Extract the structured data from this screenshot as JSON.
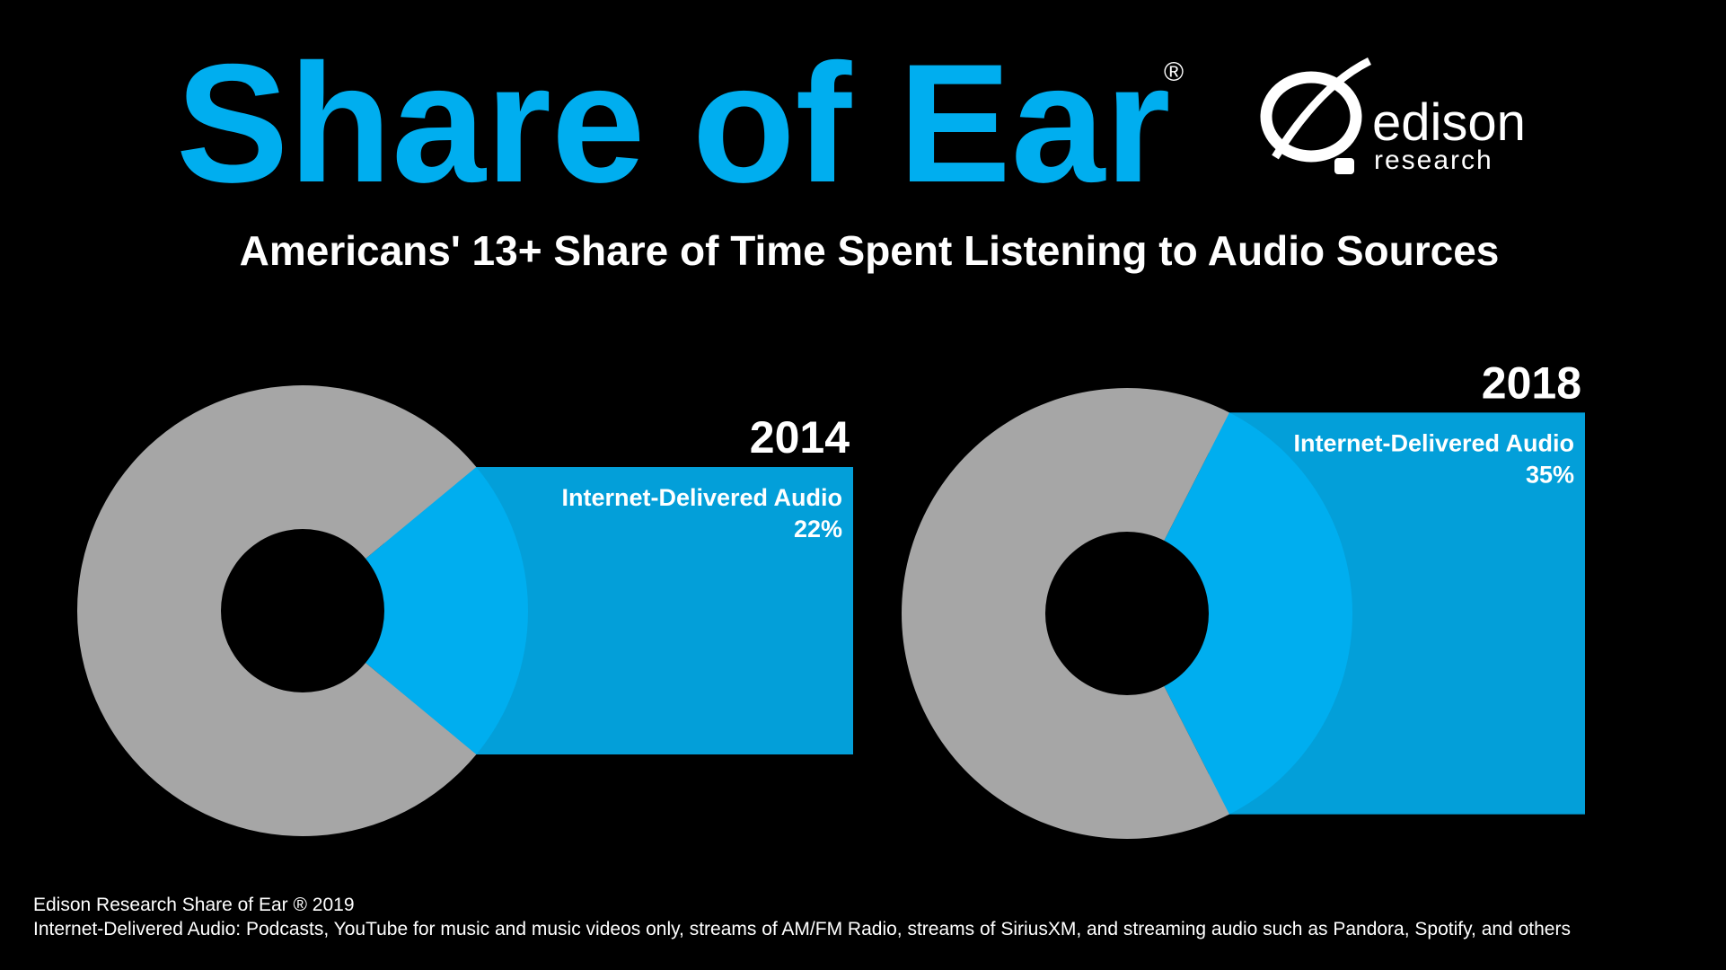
{
  "header": {
    "title": "Share of Ear",
    "title_mark": "®",
    "logo_name": "edison",
    "logo_sub": "research"
  },
  "subtitle": "Americans' 13+ Share of Time Spent Listening to Audio Sources",
  "chart_data": [
    {
      "type": "pie",
      "title": "2014",
      "categories": [
        "Internet-Delivered Audio",
        null
      ],
      "values": [
        22,
        78
      ],
      "value_labels": [
        "22%",
        null
      ],
      "colors": [
        "#00aeef",
        "#a6a6a6"
      ]
    },
    {
      "type": "pie",
      "title": "2018",
      "categories": [
        "Internet-Delivered Audio",
        null
      ],
      "values": [
        35,
        65
      ],
      "value_labels": [
        "35%",
        null
      ],
      "colors": [
        "#00aeef",
        "#a6a6a6"
      ]
    }
  ],
  "footer": {
    "source": "Edison Research Share of Ear ® 2019",
    "note": "Internet-Delivered Audio: Podcasts, YouTube for music and music videos only, streams of AM/FM Radio, streams of SiriusXM, and streaming audio such as Pandora, Spotify, and others"
  }
}
